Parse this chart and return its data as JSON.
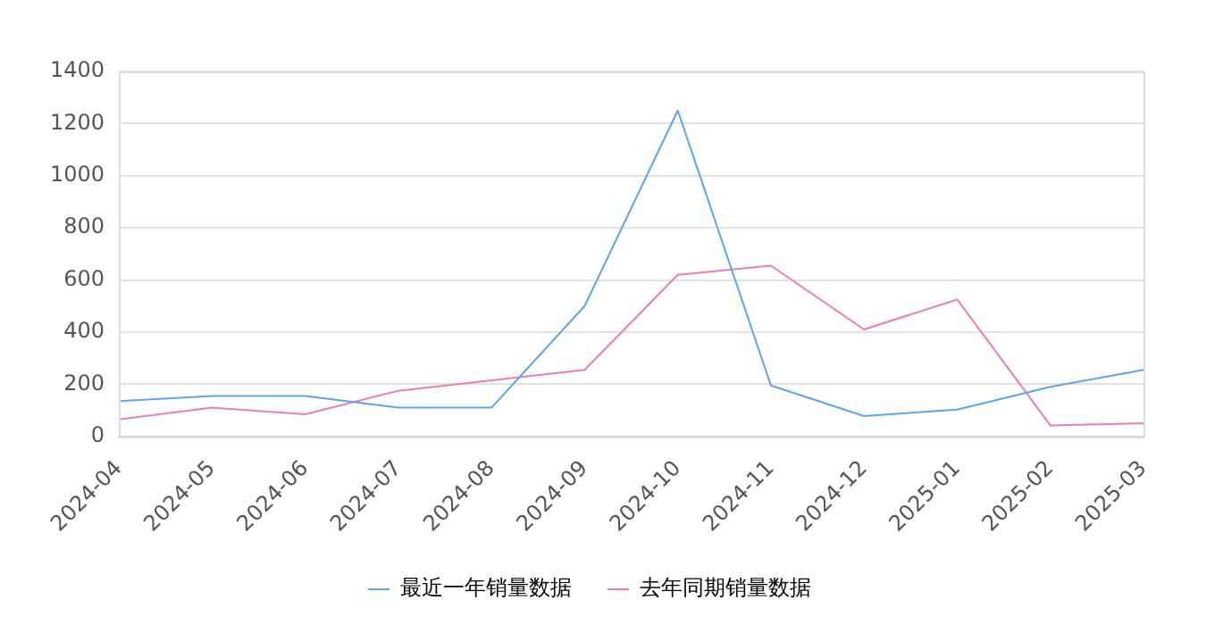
{
  "chart_data": {
    "type": "line",
    "categories": [
      "2024-04",
      "2024-05",
      "2024-06",
      "2024-07",
      "2024-08",
      "2024-09",
      "2024-10",
      "2024-11",
      "2024-12",
      "2025-01",
      "2025-02",
      "2025-03"
    ],
    "series": [
      {
        "name": "最近一年销量数据",
        "color": "#5aa5f0",
        "values": [
          135,
          155,
          155,
          110,
          110,
          500,
          1250,
          195,
          78,
          103,
          190,
          255
        ]
      },
      {
        "name": "去年同期销量数据",
        "color": "#f07ab4",
        "values": [
          65,
          110,
          85,
          175,
          215,
          255,
          620,
          655,
          410,
          525,
          42,
          50
        ]
      }
    ],
    "ylim": [
      0,
      1400
    ],
    "yticks": [
      0,
      200,
      400,
      600,
      800,
      1000,
      1200,
      1400
    ],
    "grid": "y",
    "legend": "bottom",
    "marker": "none",
    "line_style": "solid"
  }
}
